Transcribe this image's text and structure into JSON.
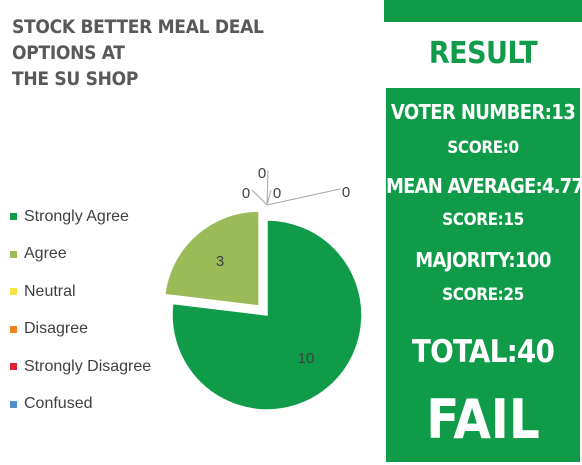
{
  "title": {
    "line1": "STOCK BETTER MEAL DEAL OPTIONS AT",
    "line2": "THE SU SHOP"
  },
  "chart_data": {
    "type": "pie",
    "title": "STOCK BETTER MEAL DEAL OPTIONS AT THE SU SHOP",
    "categories": [
      "Strongly Agree",
      "Agree",
      "Neutral",
      "Disagree",
      "Strongly Disagree",
      "Confused"
    ],
    "values": [
      10,
      3,
      0,
      0,
      0,
      0
    ],
    "colors": [
      "#0f9b48",
      "#9bbb59",
      "#f5e342",
      "#f0841c",
      "#e3203a",
      "#4f8fd0"
    ],
    "data_labels": [
      "10",
      "3",
      "0",
      "0",
      "0",
      "0"
    ],
    "exploded": true,
    "legend_position": "left"
  },
  "result": {
    "title": "RESULT",
    "voter_number": "VOTER NUMBER:13",
    "score_1": "SCORE:0",
    "mean_average": "MEAN AVERAGE:4.77",
    "score_2": "SCORE:15",
    "majority": "MAJORITY:100",
    "score_3": "SCORE:25",
    "total": "TOTAL:40",
    "verdict": "FAIL",
    "accent_color": "#0f9b48"
  }
}
